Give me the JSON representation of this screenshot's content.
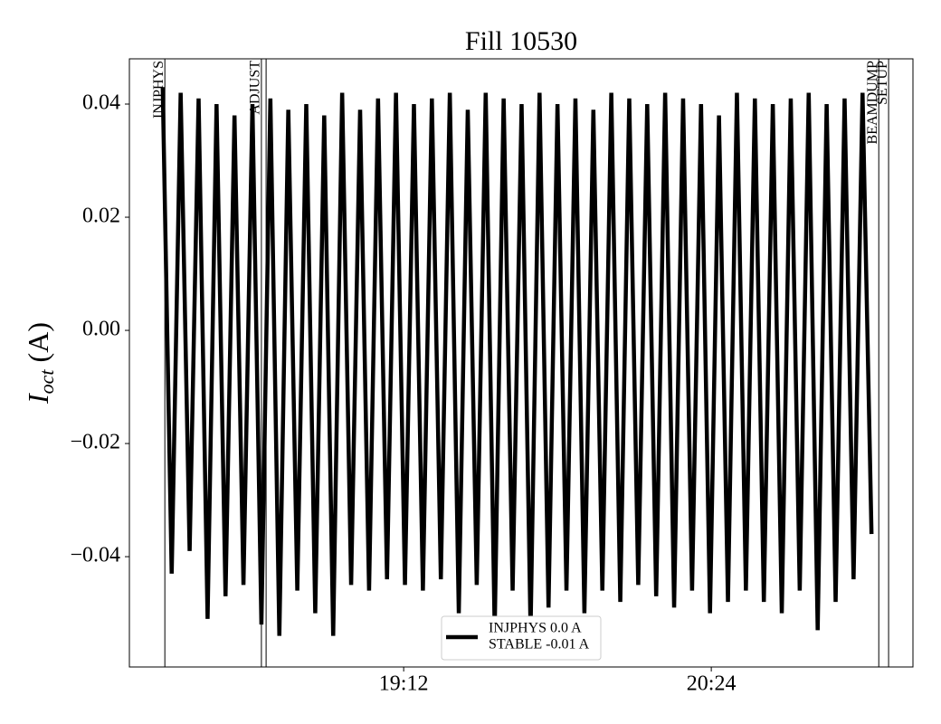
{
  "chart_data": {
    "type": "line",
    "title": "Fill 10530",
    "ylabel": {
      "symbol": "I",
      "subscript": "oct",
      "unit": "(A)"
    },
    "xlim": [
      1087.8,
      1271.2
    ],
    "xticks": [
      {
        "value": 1152,
        "label": "19:12"
      },
      {
        "value": 1224,
        "label": "20:24"
      }
    ],
    "ylim": [
      -0.0595,
      0.048
    ],
    "yticks": [
      {
        "value": -0.04,
        "label": "−0.04"
      },
      {
        "value": -0.02,
        "label": "−0.02"
      },
      {
        "value": 0,
        "label": "0.00"
      },
      0.02,
      0.04
    ],
    "events": [
      {
        "label": "INJPHYS",
        "x": 1096.1
      },
      {
        "label": "ADJUST",
        "x": 1118.7
      },
      {
        "label": "BEAMDUMP",
        "x": 1263.2
      },
      {
        "label": "SETUP",
        "x": 1265.5
      }
    ],
    "lines": [
      1119.8
    ],
    "legend_text": [
      "INJPHYS 0.0 A",
      "STABLE -0.01 A"
    ],
    "legend": "lower center",
    "x": [
      1095.6,
      1097.7,
      1099.8,
      1101.9,
      1104.0,
      1106.1,
      1108.2,
      1110.3,
      1112.4,
      1114.5,
      1116.6,
      1118.7,
      1120.8,
      1122.9,
      1125.0,
      1127.1,
      1129.2,
      1131.3,
      1133.4,
      1135.5,
      1137.6,
      1139.7,
      1141.8,
      1143.9,
      1146.0,
      1148.1,
      1150.2,
      1152.3,
      1154.4,
      1156.5,
      1158.6,
      1160.7,
      1162.8,
      1164.9,
      1167.0,
      1169.1,
      1171.2,
      1173.3,
      1175.4,
      1177.5,
      1179.6,
      1181.7,
      1183.8,
      1185.9,
      1188.0,
      1190.1,
      1192.2,
      1194.3,
      1196.4,
      1198.5,
      1200.6,
      1202.7,
      1204.8,
      1206.9,
      1209.0,
      1211.1,
      1213.2,
      1215.3,
      1217.4,
      1219.5,
      1221.6,
      1223.7,
      1225.8,
      1227.9,
      1230.0,
      1232.1,
      1234.2,
      1236.3,
      1238.4,
      1240.5,
      1242.6,
      1244.7,
      1246.8,
      1248.9,
      1251.0,
      1253.1,
      1255.2,
      1257.3,
      1259.4,
      1261.5
    ],
    "series": [
      {
        "color": "#000000",
        "values": [
          0.043,
          -0.043,
          0.042,
          -0.039,
          0.041,
          -0.051,
          0.04,
          -0.047,
          0.038,
          -0.045,
          0.04,
          -0.052,
          0.041,
          -0.054,
          0.039,
          -0.046,
          0.04,
          -0.05,
          0.038,
          -0.054,
          0.042,
          -0.045,
          0.039,
          -0.046,
          0.041,
          -0.044,
          0.042,
          -0.045,
          0.04,
          -0.046,
          0.041,
          -0.044,
          0.042,
          -0.05,
          0.039,
          -0.045,
          0.042,
          -0.053,
          0.041,
          -0.046,
          0.04,
          -0.053,
          0.042,
          -0.049,
          0.04,
          -0.046,
          0.041,
          -0.05,
          0.039,
          -0.046,
          0.042,
          -0.048,
          0.041,
          -0.045,
          0.04,
          -0.047,
          0.042,
          -0.049,
          0.041,
          -0.046,
          0.04,
          -0.05,
          0.038,
          -0.048,
          0.042,
          -0.046,
          0.041,
          -0.048,
          0.04,
          -0.05,
          0.041,
          -0.046,
          0.042,
          -0.053,
          0.04,
          -0.048,
          0.041,
          -0.044,
          0.042,
          -0.036
        ]
      }
    ]
  }
}
